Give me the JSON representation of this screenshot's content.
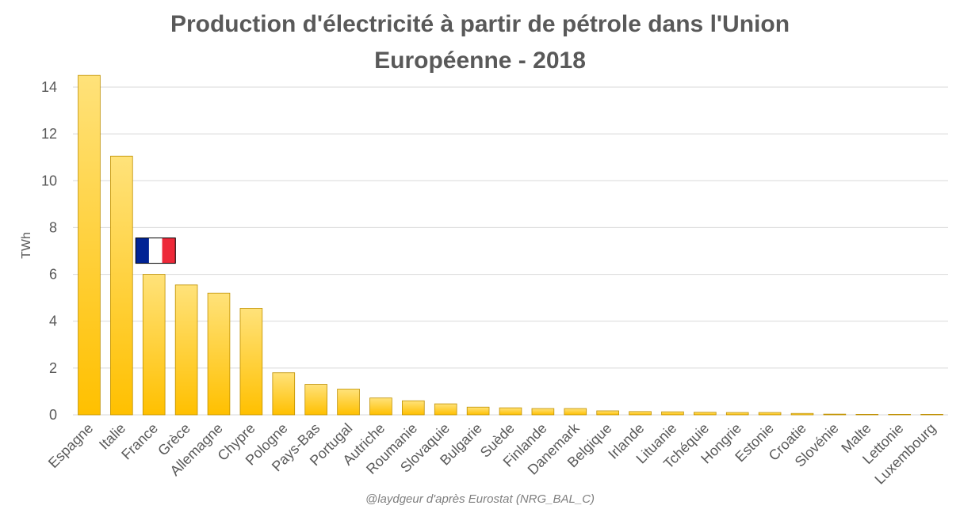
{
  "chart_data": {
    "type": "bar",
    "title_lines": [
      "Production d'électricité à partir de pétrole dans l'Union",
      "Européenne - 2018"
    ],
    "xlabel": "",
    "ylabel": "TWh",
    "ylim": [
      0,
      14
    ],
    "yticks": [
      "0",
      "2",
      "4",
      "6",
      "8",
      "10",
      "12",
      "14"
    ],
    "grid": true,
    "categories": [
      "Espagne",
      "Italie",
      "France",
      "Grèce",
      "Allemagne",
      "Chypre",
      "Pologne",
      "Pays-Bas",
      "Portugal",
      "Autriche",
      "Roumanie",
      "Slovaquie",
      "Bulgarie",
      "Suède",
      "Finlande",
      "Danemark",
      "Belgique",
      "Irlande",
      "Lituanie",
      "Tchéquie",
      "Hongrie",
      "Estonie",
      "Croatie",
      "Slovénie",
      "Malte",
      "Lettonie",
      "Luxembourg"
    ],
    "values": [
      14.5,
      11.05,
      6.0,
      5.55,
      5.2,
      4.55,
      1.8,
      1.3,
      1.1,
      0.72,
      0.6,
      0.47,
      0.33,
      0.3,
      0.27,
      0.27,
      0.17,
      0.14,
      0.13,
      0.11,
      0.1,
      0.1,
      0.06,
      0.03,
      0.02,
      0.02,
      0.02
    ],
    "annotations": [
      {
        "type": "flag",
        "icon": "france-flag-icon",
        "category": "France",
        "colors": [
          "#002395",
          "#FFFFFF",
          "#ED2939"
        ]
      }
    ],
    "colors": {
      "bar_top": "#FFE27A",
      "bar_bottom": "#FFC000",
      "bar_stroke": "#BF9000",
      "grid": "#D9D9D9",
      "axis_text": "#595959",
      "title": "#595959"
    }
  },
  "credit": "@laydgeur d'après Eurostat (NRG_BAL_C)"
}
